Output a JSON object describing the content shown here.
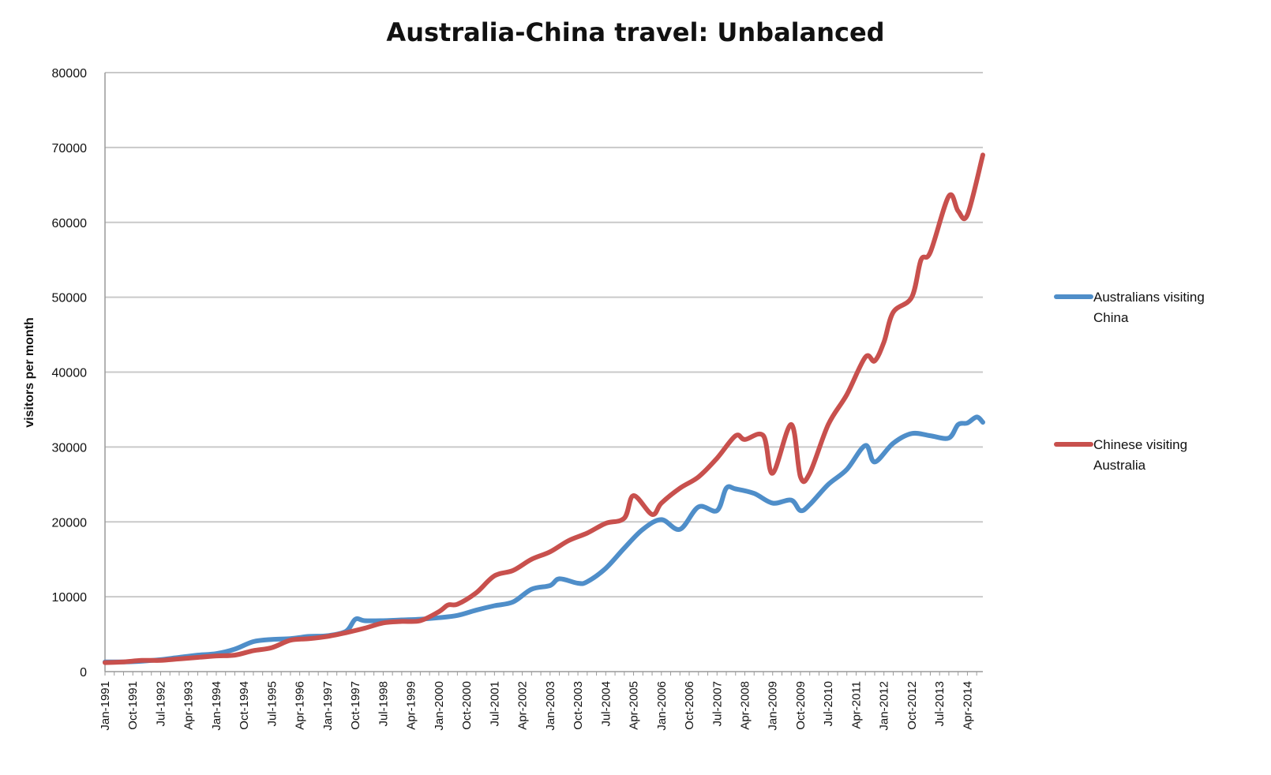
{
  "chart_data": {
    "type": "line",
    "title": "Australia-China travel: Unbalanced",
    "ylabel": "visitors per month",
    "xlabel": "",
    "ylim": [
      0,
      80000
    ],
    "yticks": [
      0,
      10000,
      20000,
      30000,
      40000,
      50000,
      60000,
      70000,
      80000
    ],
    "x_start": "Jan-1991",
    "x_end": "Sep-2014",
    "x_tick_labels": [
      "Jan-1991",
      "Oct-1991",
      "Jul-1992",
      "Apr-1993",
      "Jan-1994",
      "Oct-1994",
      "Jul-1995",
      "Apr-1996",
      "Jan-1997",
      "Oct-1997",
      "Jul-1998",
      "Apr-1999",
      "Jan-2000",
      "Oct-2000",
      "Jul-2001",
      "Apr-2002",
      "Jan-2003",
      "Oct-2003",
      "Jul-2004",
      "Apr-2005",
      "Jan-2006",
      "Oct-2006",
      "Jul-2007",
      "Apr-2008",
      "Jan-2009",
      "Oct-2009",
      "Jul-2010",
      "Apr-2011",
      "Jan-2012",
      "Oct-2012",
      "Jul-2013",
      "Apr-2014"
    ],
    "grid": true,
    "legend_position": "right",
    "series": [
      {
        "name": "Australians visiting China",
        "color": "#4f8ec9",
        "points": [
          [
            "Jan-1991",
            1300
          ],
          [
            "Jul-1991",
            1300
          ],
          [
            "Jan-1992",
            1400
          ],
          [
            "Jul-1992",
            1600
          ],
          [
            "Jan-1993",
            1900
          ],
          [
            "Jul-1993",
            2200
          ],
          [
            "Jan-1994",
            2400
          ],
          [
            "Jul-1994",
            3000
          ],
          [
            "Jan-1995",
            4000
          ],
          [
            "Jul-1995",
            4300
          ],
          [
            "Jan-1996",
            4400
          ],
          [
            "Jul-1996",
            4700
          ],
          [
            "Jan-1997",
            4800
          ],
          [
            "Jul-1997",
            5400
          ],
          [
            "Oct-1997",
            7000
          ],
          [
            "Jan-1998",
            6800
          ],
          [
            "Jul-1998",
            6800
          ],
          [
            "Jan-1999",
            6900
          ],
          [
            "Jul-1999",
            7000
          ],
          [
            "Jan-2000",
            7200
          ],
          [
            "Jul-2000",
            7500
          ],
          [
            "Jan-2001",
            8200
          ],
          [
            "Jul-2001",
            8800
          ],
          [
            "Jan-2002",
            9300
          ],
          [
            "Jul-2002",
            11000
          ],
          [
            "Jan-2003",
            11500
          ],
          [
            "Apr-2003",
            12400
          ],
          [
            "Oct-2003",
            11800
          ],
          [
            "Jan-2004",
            12000
          ],
          [
            "Jul-2004",
            13800
          ],
          [
            "Jan-2005",
            16500
          ],
          [
            "Jul-2005",
            19000
          ],
          [
            "Jan-2006",
            20300
          ],
          [
            "Jul-2006",
            19000
          ],
          [
            "Jan-2007",
            22000
          ],
          [
            "Jul-2007",
            21500
          ],
          [
            "Oct-2007",
            24500
          ],
          [
            "Jan-2008",
            24400
          ],
          [
            "Jul-2008",
            23800
          ],
          [
            "Jan-2009",
            22500
          ],
          [
            "Jul-2009",
            22900
          ],
          [
            "Oct-2009",
            21500
          ],
          [
            "Jan-2010",
            22300
          ],
          [
            "Jul-2010",
            25000
          ],
          [
            "Jan-2011",
            27000
          ],
          [
            "Jul-2011",
            30200
          ],
          [
            "Oct-2011",
            28000
          ],
          [
            "Apr-2012",
            30500
          ],
          [
            "Oct-2012",
            31800
          ],
          [
            "Apr-2013",
            31500
          ],
          [
            "Oct-2013",
            31200
          ],
          [
            "Jan-2014",
            33000
          ],
          [
            "Apr-2014",
            33200
          ],
          [
            "Jul-2014",
            34000
          ],
          [
            "Sep-2014",
            33300
          ]
        ]
      },
      {
        "name": "Chinese visiting Australia",
        "color": "#c8504d",
        "points": [
          [
            "Jan-1991",
            1200
          ],
          [
            "Jul-1991",
            1300
          ],
          [
            "Jan-1992",
            1500
          ],
          [
            "Jul-1992",
            1500
          ],
          [
            "Jan-1993",
            1700
          ],
          [
            "Jul-1993",
            1900
          ],
          [
            "Jan-1994",
            2100
          ],
          [
            "Jul-1994",
            2200
          ],
          [
            "Jan-1995",
            2800
          ],
          [
            "Jul-1995",
            3200
          ],
          [
            "Jan-1996",
            4200
          ],
          [
            "Jul-1996",
            4400
          ],
          [
            "Jan-1997",
            4700
          ],
          [
            "Jul-1997",
            5200
          ],
          [
            "Jan-1998",
            5800
          ],
          [
            "Jul-1998",
            6500
          ],
          [
            "Jan-1999",
            6700
          ],
          [
            "Jul-1999",
            6800
          ],
          [
            "Jan-2000",
            8000
          ],
          [
            "Apr-2000",
            8900
          ],
          [
            "Jul-2000",
            9000
          ],
          [
            "Jan-2001",
            10500
          ],
          [
            "Jul-2001",
            12800
          ],
          [
            "Jan-2002",
            13500
          ],
          [
            "Jul-2002",
            15000
          ],
          [
            "Jan-2003",
            16000
          ],
          [
            "Jul-2003",
            17500
          ],
          [
            "Jan-2004",
            18500
          ],
          [
            "Jul-2004",
            19800
          ],
          [
            "Jan-2005",
            20500
          ],
          [
            "Apr-2005",
            23500
          ],
          [
            "Oct-2005",
            21000
          ],
          [
            "Jan-2006",
            22500
          ],
          [
            "Jul-2006",
            24500
          ],
          [
            "Jan-2007",
            26000
          ],
          [
            "Jul-2007",
            28500
          ],
          [
            "Jan-2008",
            31500
          ],
          [
            "Apr-2008",
            31000
          ],
          [
            "Oct-2008",
            31500
          ],
          [
            "Jan-2009",
            26500
          ],
          [
            "Jul-2009",
            33000
          ],
          [
            "Oct-2009",
            26000
          ],
          [
            "Jan-2010",
            26500
          ],
          [
            "Jul-2010",
            33000
          ],
          [
            "Jan-2011",
            37000
          ],
          [
            "Jul-2011",
            42000
          ],
          [
            "Oct-2011",
            41500
          ],
          [
            "Jan-2012",
            44000
          ],
          [
            "Apr-2012",
            48000
          ],
          [
            "Oct-2012",
            50000
          ],
          [
            "Jan-2013",
            55000
          ],
          [
            "Apr-2013",
            56000
          ],
          [
            "Oct-2013",
            63500
          ],
          [
            "Jan-2014",
            61500
          ],
          [
            "Apr-2014",
            61000
          ],
          [
            "Sep-2014",
            69000
          ]
        ]
      }
    ]
  }
}
